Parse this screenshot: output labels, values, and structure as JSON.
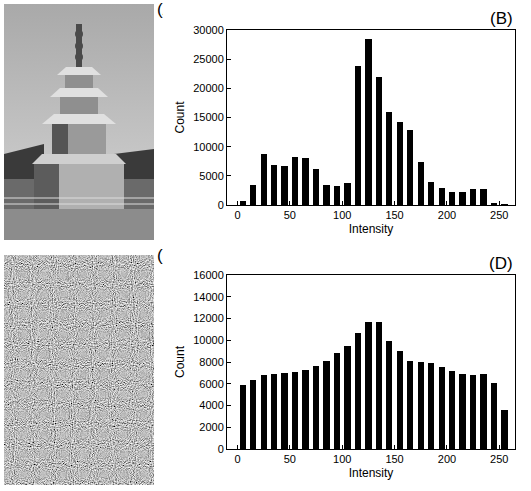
{
  "chart_data": [
    {
      "type": "histogram",
      "annotations": [
        "(B)"
      ],
      "xlabel": "Intensity",
      "ylabel": "Count",
      "bins": [
        0,
        10,
        20,
        30,
        40,
        50,
        60,
        70,
        80,
        90,
        100,
        110,
        120,
        130,
        140,
        150,
        160,
        170,
        180,
        190,
        200,
        210,
        220,
        230,
        240,
        250,
        260
      ],
      "values": [
        700,
        3400,
        8700,
        6900,
        6700,
        8200,
        8100,
        6100,
        3400,
        3300,
        3800,
        23800,
        28400,
        22000,
        16000,
        14200,
        12900,
        7300,
        3900,
        3000,
        2300,
        2300,
        2800,
        2800,
        400,
        100
      ],
      "color": "#000000",
      "grid": false,
      "xlim": [
        -10,
        265
      ],
      "xticks": [
        0,
        50,
        100,
        150,
        200,
        250
      ],
      "ylim": [
        0,
        30000
      ],
      "yticks": [
        0,
        5000,
        10000,
        15000,
        20000,
        25000,
        30000
      ]
    },
    {
      "type": "histogram",
      "annotations": [
        "(D)"
      ],
      "xlabel": "Intensity",
      "ylabel": "Count",
      "bins": [
        0,
        10,
        20,
        30,
        40,
        50,
        60,
        70,
        80,
        90,
        100,
        110,
        120,
        130,
        140,
        150,
        160,
        170,
        180,
        190,
        200,
        210,
        220,
        230,
        240,
        250,
        260
      ],
      "values": [
        5900,
        6300,
        6800,
        6900,
        7000,
        7100,
        7300,
        7600,
        8100,
        8800,
        9500,
        10700,
        11700,
        11700,
        9900,
        9000,
        8100,
        8000,
        7900,
        7500,
        7200,
        6900,
        6800,
        6900,
        6100,
        3600
      ],
      "color": "#000000",
      "grid": false,
      "xlim": [
        -10,
        265
      ],
      "xticks": [
        0,
        50,
        100,
        150,
        200,
        250
      ],
      "ylim": [
        0,
        16000
      ],
      "yticks": [
        0,
        2000,
        4000,
        6000,
        8000,
        10000,
        12000,
        14000,
        16000
      ]
    }
  ],
  "images": [
    {
      "label": "(A)",
      "type": "photo"
    },
    {
      "label": "(C)",
      "type": "noise"
    }
  ]
}
